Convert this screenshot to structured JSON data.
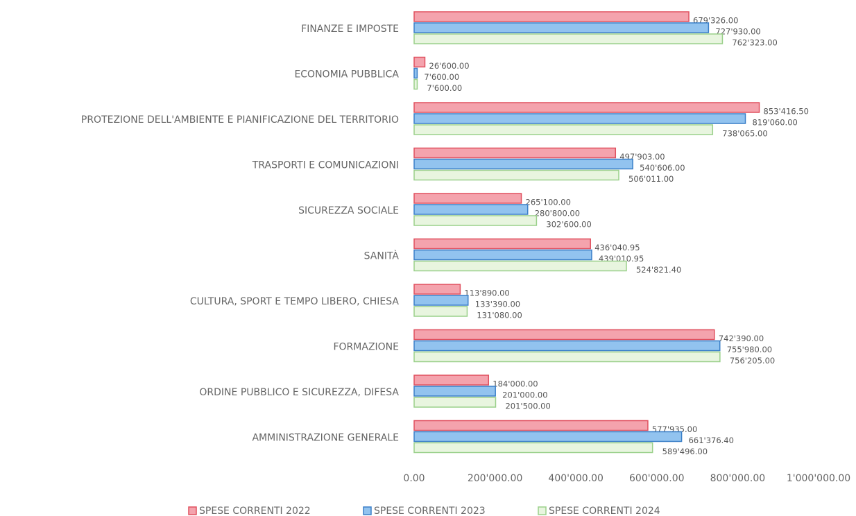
{
  "chart_data": {
    "type": "hbar",
    "categories": [
      "FINANZE E IMPOSTE",
      "ECONOMIA PUBBLICA",
      "PROTEZIONE DELL'AMBIENTE E PIANIFICAZIONE DEL TERRITORIO",
      "TRASPORTI E COMUNICAZIONI",
      "SICUREZZA SOCIALE",
      "SANITÀ",
      "CULTURA, SPORT E TEMPO LIBERO, CHIESA",
      "FORMAZIONE",
      "ORDINE PUBBLICO E SICUREZZA, DIFESA",
      "AMMINISTRAZIONE GENERALE"
    ],
    "series": [
      {
        "name": "SPESE CORRENTI 2022",
        "color": "#f4a3ad",
        "stroke": "#e0505f",
        "values": [
          679326,
          26600,
          853416.5,
          497903,
          265100,
          436040.95,
          113890,
          742390,
          184000,
          577935
        ],
        "value_labels": [
          "679'326.00",
          "26'600.00",
          "853'416.50",
          "497'903.00",
          "265'100.00",
          "436'040.95",
          "113'890.00",
          "742'390.00",
          "184'000.00",
          "577'935.00"
        ]
      },
      {
        "name": "SPESE CORRENTI 2023",
        "color": "#92c3ef",
        "stroke": "#3a7fc8",
        "values": [
          727930,
          7600,
          819060,
          540606,
          280800,
          439010.95,
          133390,
          755980,
          201000,
          661376.4
        ],
        "value_labels": [
          "727'930.00",
          "7'600.00",
          "819'060.00",
          "540'606.00",
          "280'800.00",
          "439'010.95",
          "133'390.00",
          "755'980.00",
          "201'000.00",
          "661'376.40"
        ]
      },
      {
        "name": "SPESE CORRENTI 2024",
        "color": "#e8f5df",
        "stroke": "#9ad08a",
        "values": [
          762323,
          7600,
          738065,
          506011,
          302600,
          524821.4,
          131080,
          756205,
          201500,
          589496
        ],
        "value_labels": [
          "762'323.00",
          "7'600.00",
          "738'065.00",
          "506'011.00",
          "302'600.00",
          "524'821.40",
          "131'080.00",
          "756'205.00",
          "201'500.00",
          "589'496.00"
        ]
      }
    ],
    "xlim": [
      0,
      1000000
    ],
    "xticks": [
      {
        "value": 0,
        "label": "0.00"
      },
      {
        "value": 200000,
        "label": "200'000.00"
      },
      {
        "value": 400000,
        "label": "400'000.00"
      },
      {
        "value": 600000,
        "label": "600'000.00"
      },
      {
        "value": 800000,
        "label": "800'000.00"
      },
      {
        "value": 1000000,
        "label": "1'000'000.00"
      }
    ],
    "legend": "bottom"
  }
}
